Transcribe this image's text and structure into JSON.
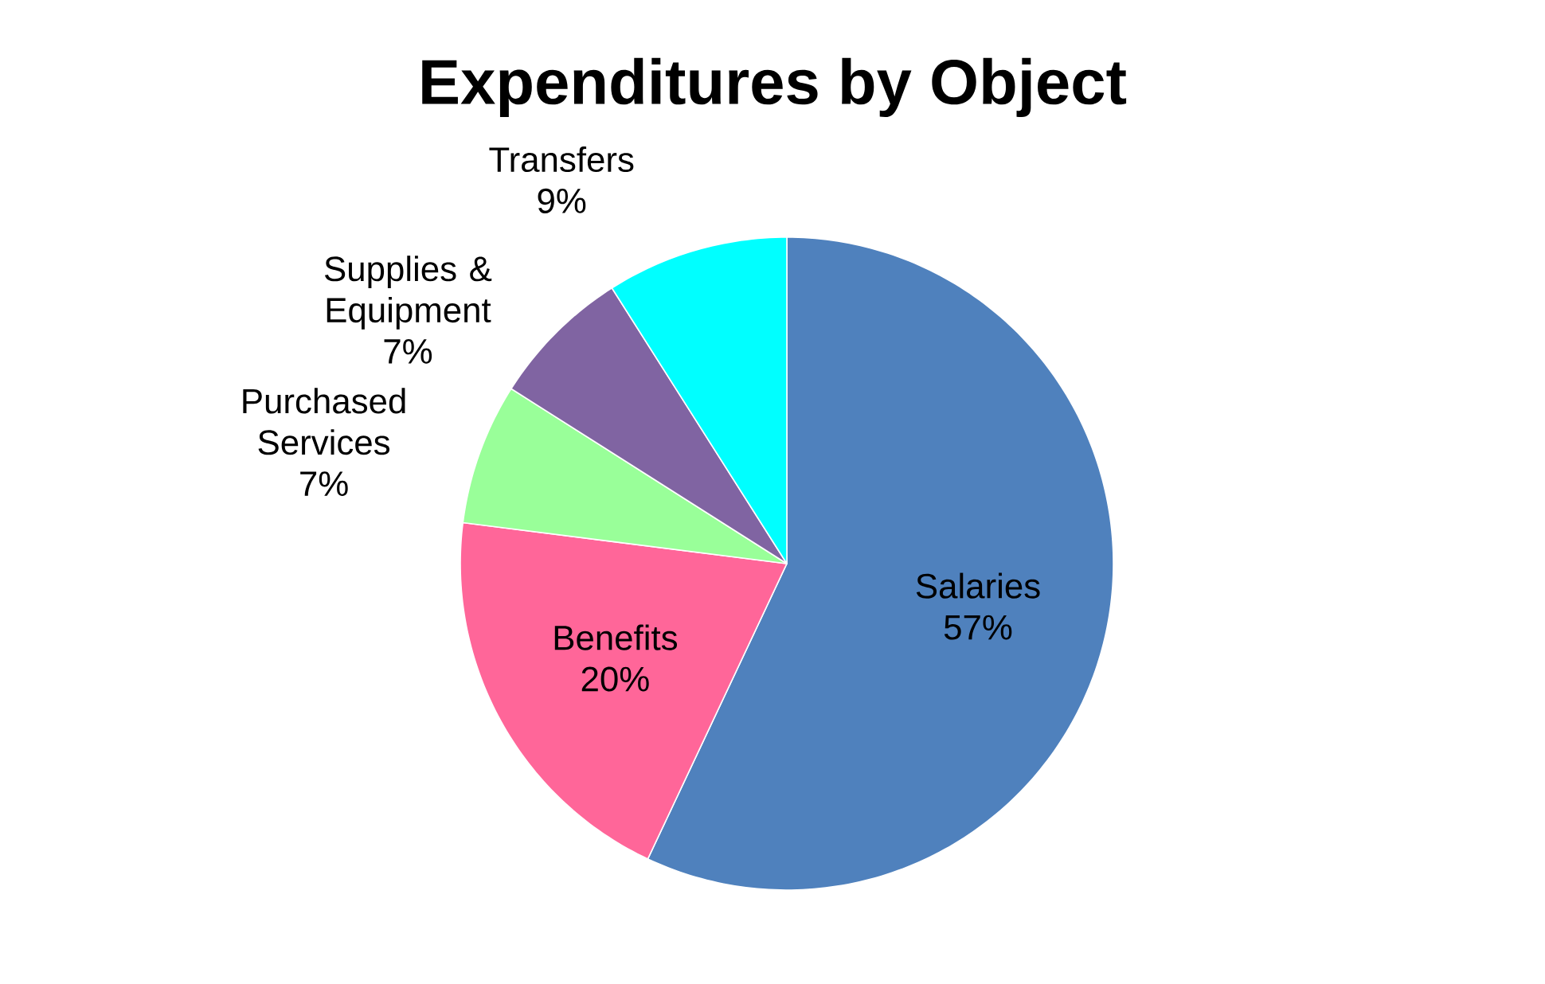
{
  "chart_data": {
    "type": "pie",
    "title": "Expenditures by Object",
    "categories": [
      "Salaries",
      "Benefits",
      "Purchased Services",
      "Supplies & Equipment",
      "Transfers"
    ],
    "values": [
      57,
      20,
      7,
      7,
      9
    ],
    "value_labels": [
      "57%",
      "20%",
      "7%",
      "7%",
      "9%"
    ],
    "colors": [
      "#4f81bd",
      "#ff6699",
      "#99ff99",
      "#8064a2",
      "#00ffff"
    ]
  }
}
